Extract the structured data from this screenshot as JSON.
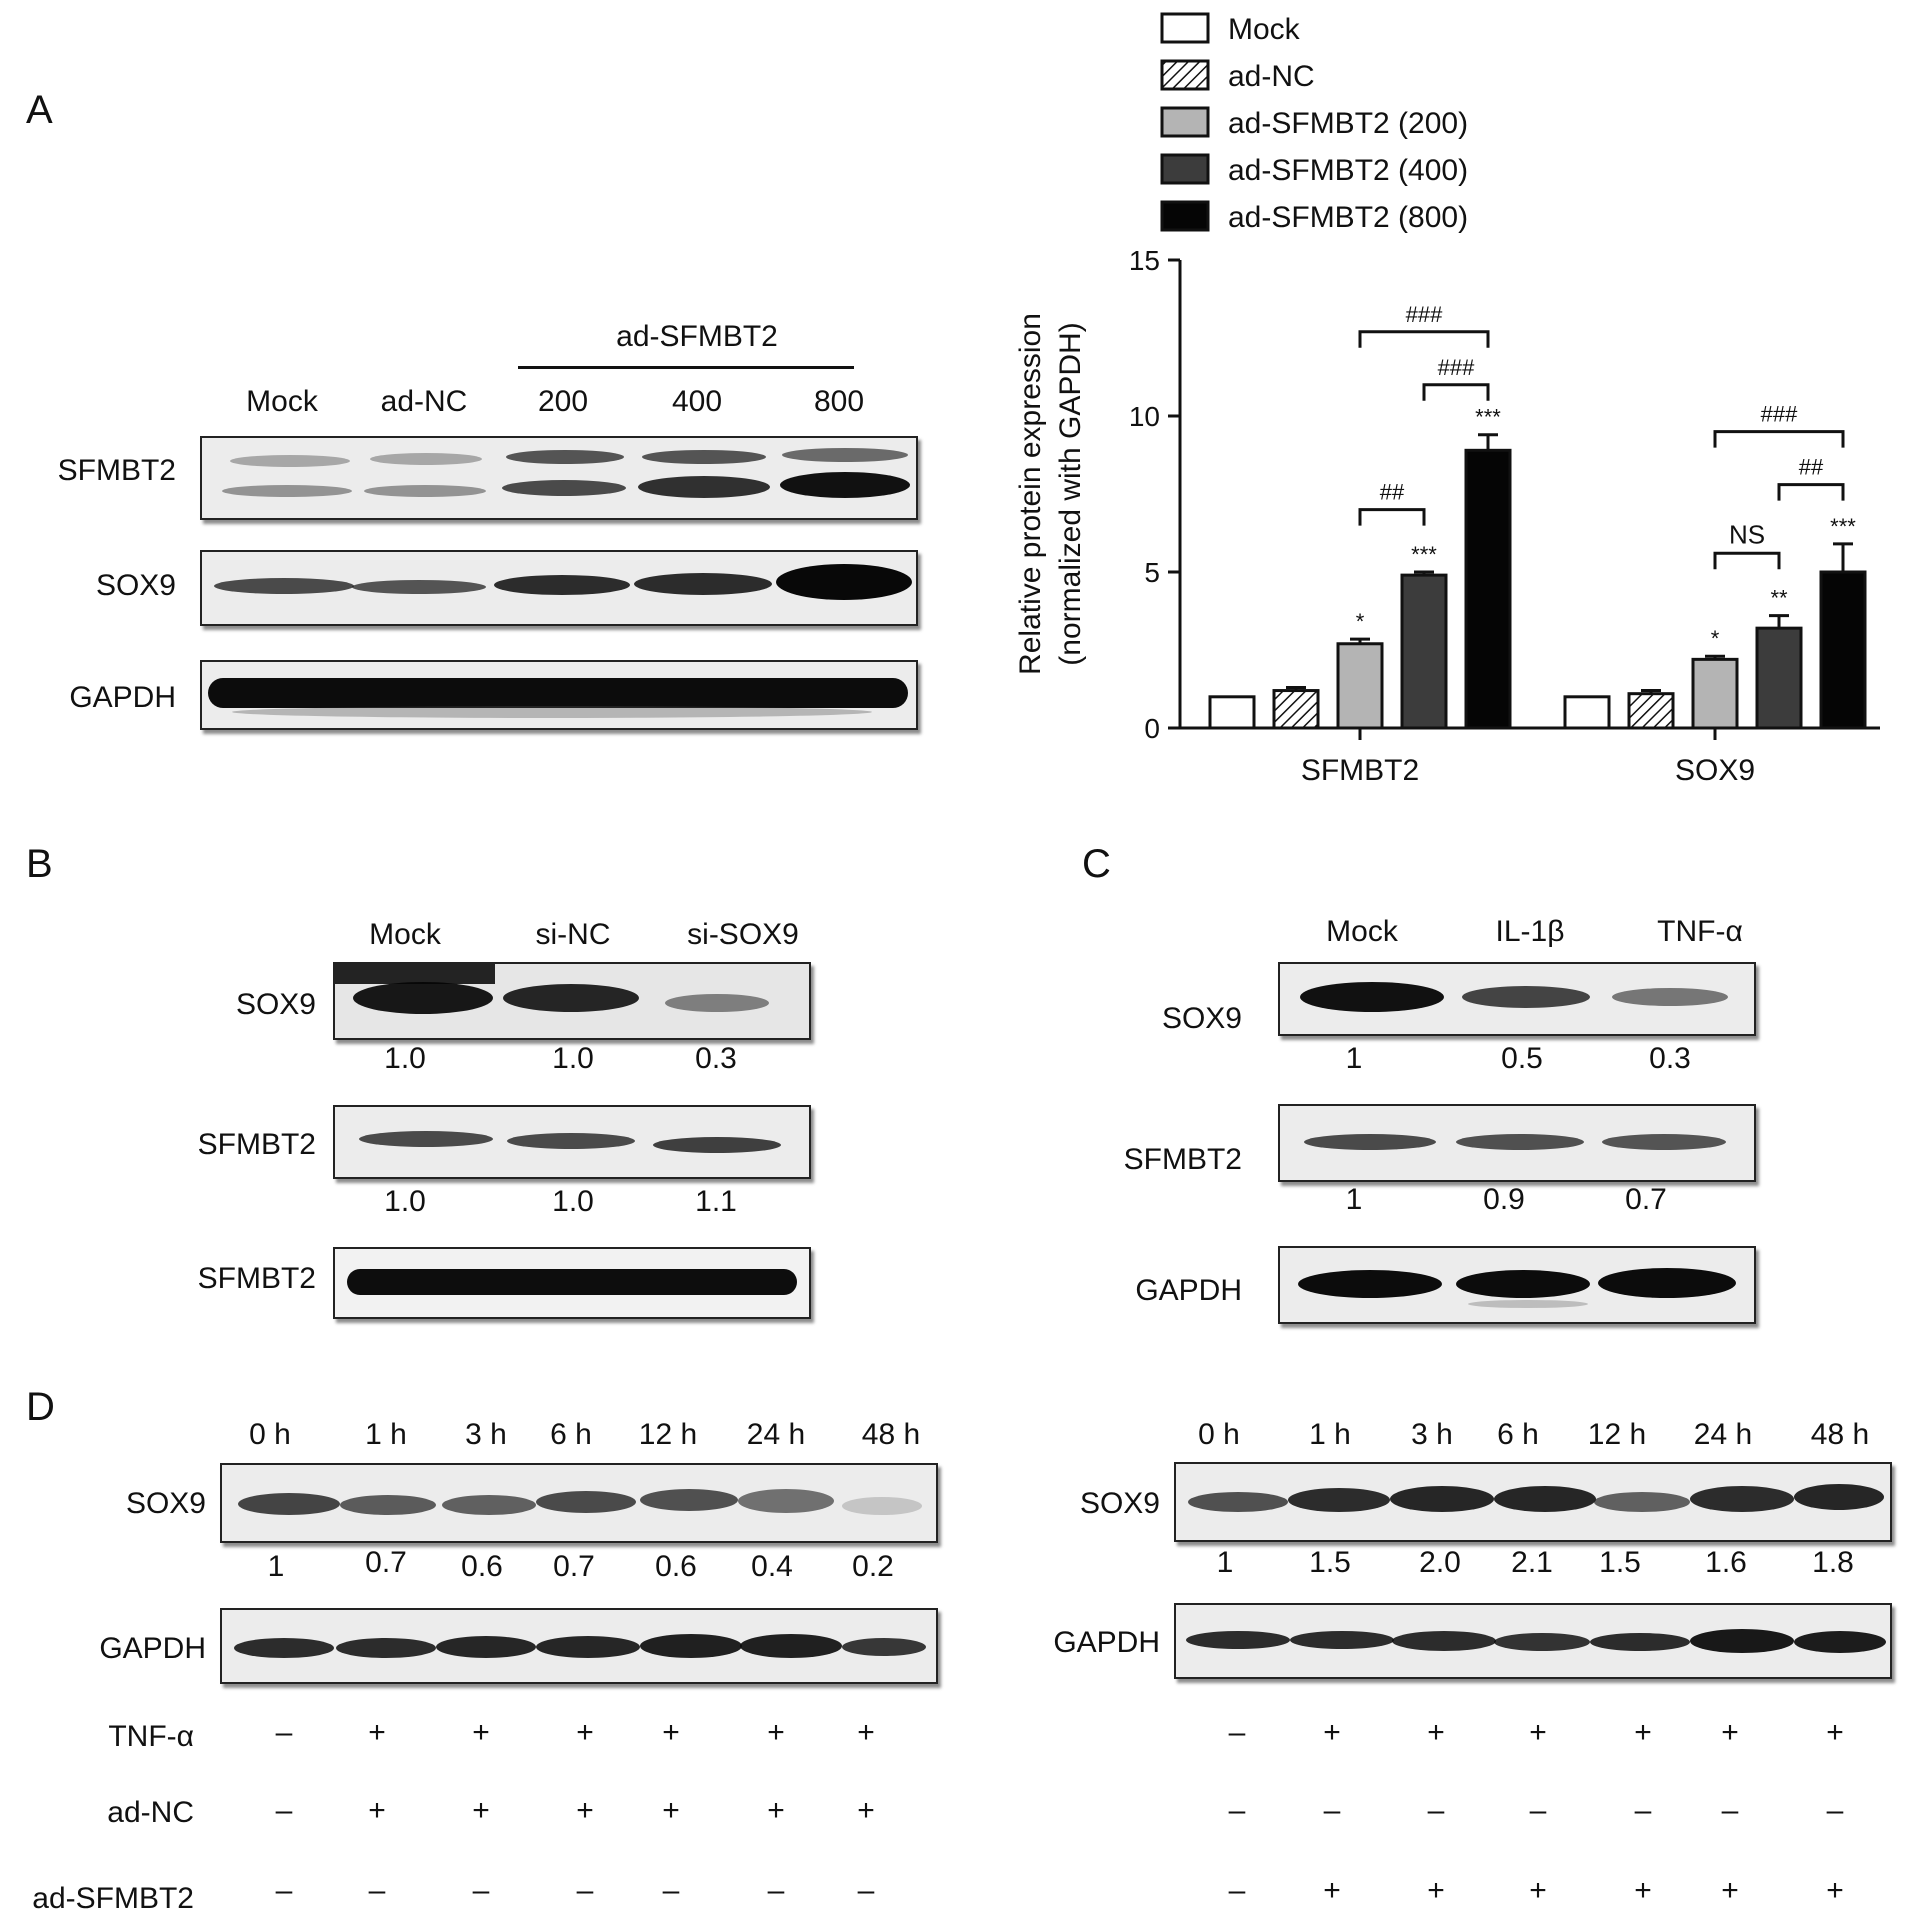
{
  "panels": {
    "A": "A",
    "B": "B",
    "C": "C",
    "D": "D"
  },
  "panelA": {
    "header": "ad-SFMBT2",
    "lanes": [
      "Mock",
      "ad-NC",
      "200",
      "400",
      "800"
    ],
    "rows": [
      "SFMBT2",
      "SOX9",
      "GAPDH"
    ]
  },
  "chart_data": {
    "type": "bar",
    "categories": [
      "SFMBT2",
      "SOX9"
    ],
    "ylabel_line1": "Relative protein expression",
    "ylabel_line2": "(normalized with GAPDH)",
    "ylim": [
      0,
      15
    ],
    "yticks": [
      0,
      5,
      10,
      15
    ],
    "legend_position": "top",
    "series": [
      {
        "name": "Mock",
        "values": [
          1.0,
          1.0
        ],
        "errors": [
          0.0,
          0.0
        ],
        "stars": [
          "",
          ""
        ],
        "fill": "#ffffff"
      },
      {
        "name": "ad-NC",
        "values": [
          1.2,
          1.1
        ],
        "errors": [
          0.1,
          0.1
        ],
        "stars": [
          "",
          ""
        ],
        "fill": "hatch"
      },
      {
        "name": "ad-SFMBT2 (200)",
        "values": [
          2.7,
          2.2
        ],
        "errors": [
          0.15,
          0.1
        ],
        "stars": [
          "*",
          "*"
        ],
        "fill": "#b4b4b4"
      },
      {
        "name": "ad-SFMBT2 (400)",
        "values": [
          4.9,
          3.2
        ],
        "errors": [
          0.1,
          0.4
        ],
        "stars": [
          "***",
          "**"
        ],
        "fill": "#3c3c3c"
      },
      {
        "name": "ad-SFMBT2 (800)",
        "values": [
          8.9,
          5.0
        ],
        "errors": [
          0.5,
          0.9
        ],
        "stars": [
          "***",
          "***"
        ],
        "fill": "#050505"
      }
    ],
    "brackets": [
      {
        "group": 0,
        "from": 2,
        "to": 4,
        "y": 12.7,
        "label": "###"
      },
      {
        "group": 0,
        "from": 3,
        "to": 4,
        "y": 11.0,
        "label": "###"
      },
      {
        "group": 0,
        "from": 2,
        "to": 3,
        "y": 7.0,
        "label": "##"
      },
      {
        "group": 1,
        "from": 2,
        "to": 4,
        "y": 9.5,
        "label": "###"
      },
      {
        "group": 1,
        "from": 3,
        "to": 4,
        "y": 7.8,
        "label": "##"
      },
      {
        "group": 1,
        "from": 2,
        "to": 3,
        "y": 5.6,
        "label": "NS"
      }
    ]
  },
  "panelB": {
    "lanes": [
      "Mock",
      "si-NC",
      "si-SOX9"
    ],
    "rows": [
      "SOX9",
      "SFMBT2",
      "SFMBT2"
    ],
    "quant1": [
      "1.0",
      "1.0",
      "0.3"
    ],
    "quant2": [
      "1.0",
      "1.0",
      "1.1"
    ]
  },
  "panelC": {
    "lanes": [
      "Mock",
      "IL-1β",
      "TNF-α"
    ],
    "rows": [
      "SOX9",
      "SFMBT2",
      "GAPDH"
    ],
    "quant1": [
      "1",
      "0.5",
      "0.3"
    ],
    "quant2": [
      "1",
      "0.9",
      "0.7"
    ]
  },
  "panelD": {
    "times": [
      "0 h",
      "1 h",
      "3 h",
      "6 h",
      "12 h",
      "24 h",
      "48 h"
    ],
    "rows": [
      "SOX9",
      "GAPDH"
    ],
    "treat_labels": [
      "TNF-α",
      "ad-NC",
      "ad-SFMBT2"
    ],
    "left": {
      "quant": [
        "1",
        "0.7",
        "0.6",
        "0.7",
        "0.6",
        "0.4",
        "0.2"
      ],
      "tnf": [
        "–",
        "+",
        "+",
        "+",
        "+",
        "+",
        "+"
      ],
      "adnc": [
        "–",
        "+",
        "+",
        "+",
        "+",
        "+",
        "+"
      ],
      "adsf": [
        "–",
        "–",
        "–",
        "–",
        "–",
        "–",
        "–"
      ]
    },
    "right": {
      "quant": [
        "1",
        "1.5",
        "2.0",
        "2.1",
        "1.5",
        "1.6",
        "1.8"
      ],
      "tnf": [
        "–",
        "+",
        "+",
        "+",
        "+",
        "+",
        "+"
      ],
      "adnc": [
        "–",
        "–",
        "–",
        "–",
        "–",
        "–",
        "–"
      ],
      "adsf": [
        "–",
        "+",
        "+",
        "+",
        "+",
        "+",
        "+"
      ]
    }
  }
}
